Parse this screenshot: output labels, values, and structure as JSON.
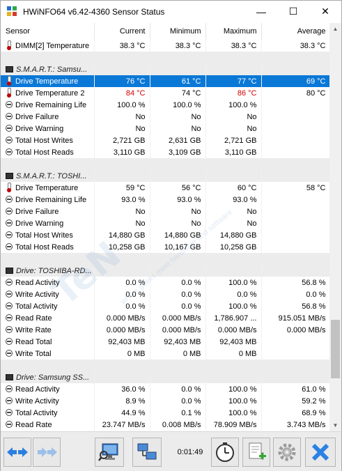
{
  "window": {
    "title": "HWiNFO64 v6.42-4360 Sensor Status",
    "minimize_glyph": "—",
    "maximize_glyph": "☐",
    "close_glyph": "✕"
  },
  "columns": [
    "Sensor",
    "Current",
    "Minimum",
    "Maximum",
    "Average"
  ],
  "rows": [
    {
      "type": "sensor",
      "icon": "thermometer-icon",
      "name": "DIMM[2] Temperature",
      "current": "38.3 °C",
      "min": "38.3 °C",
      "max": "38.3 °C",
      "avg": "38.3 °C"
    },
    {
      "type": "spacer"
    },
    {
      "type": "group",
      "name": "S.M.A.R.T.: Samsu..."
    },
    {
      "type": "sensor",
      "icon": "thermometer-icon",
      "name": "Drive Temperature",
      "current": "76 °C",
      "min": "61 °C",
      "max": "77 °C",
      "avg": "69 °C",
      "selected": true
    },
    {
      "type": "sensor",
      "icon": "thermometer-icon",
      "name": "Drive Temperature 2",
      "current": "84 °C",
      "min": "74 °C",
      "max": "86 °C",
      "avg": "80 °C",
      "red_current": true,
      "red_max": true
    },
    {
      "type": "sensor",
      "icon": "circle-minus-icon",
      "name": "Drive Remaining Life",
      "current": "100.0 %",
      "min": "100.0 %",
      "max": "100.0 %",
      "avg": ""
    },
    {
      "type": "sensor",
      "icon": "circle-minus-icon",
      "name": "Drive Failure",
      "current": "No",
      "min": "No",
      "max": "No",
      "avg": ""
    },
    {
      "type": "sensor",
      "icon": "circle-minus-icon",
      "name": "Drive Warning",
      "current": "No",
      "min": "No",
      "max": "No",
      "avg": ""
    },
    {
      "type": "sensor",
      "icon": "circle-minus-icon",
      "name": "Total Host Writes",
      "current": "2,721 GB",
      "min": "2,631 GB",
      "max": "2,721 GB",
      "avg": ""
    },
    {
      "type": "sensor",
      "icon": "circle-minus-icon",
      "name": "Total Host Reads",
      "current": "3,110 GB",
      "min": "3,109 GB",
      "max": "3,110 GB",
      "avg": ""
    },
    {
      "type": "spacer"
    },
    {
      "type": "group",
      "name": "S.M.A.R.T.: TOSHI..."
    },
    {
      "type": "sensor",
      "icon": "thermometer-icon",
      "name": "Drive Temperature",
      "current": "59 °C",
      "min": "56 °C",
      "max": "60 °C",
      "avg": "58 °C"
    },
    {
      "type": "sensor",
      "icon": "circle-minus-icon",
      "name": "Drive Remaining Life",
      "current": "93.0 %",
      "min": "93.0 %",
      "max": "93.0 %",
      "avg": ""
    },
    {
      "type": "sensor",
      "icon": "circle-minus-icon",
      "name": "Drive Failure",
      "current": "No",
      "min": "No",
      "max": "No",
      "avg": ""
    },
    {
      "type": "sensor",
      "icon": "circle-minus-icon",
      "name": "Drive Warning",
      "current": "No",
      "min": "No",
      "max": "No",
      "avg": ""
    },
    {
      "type": "sensor",
      "icon": "circle-minus-icon",
      "name": "Total Host Writes",
      "current": "14,880 GB",
      "min": "14,880 GB",
      "max": "14,880 GB",
      "avg": ""
    },
    {
      "type": "sensor",
      "icon": "circle-minus-icon",
      "name": "Total Host Reads",
      "current": "10,258 GB",
      "min": "10,167 GB",
      "max": "10,258 GB",
      "avg": ""
    },
    {
      "type": "spacer"
    },
    {
      "type": "group",
      "name": "Drive: TOSHIBA-RD..."
    },
    {
      "type": "sensor",
      "icon": "circle-minus-icon",
      "name": "Read Activity",
      "current": "0.0 %",
      "min": "0.0 %",
      "max": "100.0 %",
      "avg": "56.8 %"
    },
    {
      "type": "sensor",
      "icon": "circle-minus-icon",
      "name": "Write Activity",
      "current": "0.0 %",
      "min": "0.0 %",
      "max": "0.0 %",
      "avg": "0.0 %"
    },
    {
      "type": "sensor",
      "icon": "circle-minus-icon",
      "name": "Total Activity",
      "current": "0.0 %",
      "min": "0.0 %",
      "max": "100.0 %",
      "avg": "56.8 %"
    },
    {
      "type": "sensor",
      "icon": "circle-minus-icon",
      "name": "Read Rate",
      "current": "0.000 MB/s",
      "min": "0.000 MB/s",
      "max": "1,786.907 ...",
      "avg": "915.051 MB/s"
    },
    {
      "type": "sensor",
      "icon": "circle-minus-icon",
      "name": "Write Rate",
      "current": "0.000 MB/s",
      "min": "0.000 MB/s",
      "max": "0.000 MB/s",
      "avg": "0.000 MB/s"
    },
    {
      "type": "sensor",
      "icon": "circle-minus-icon",
      "name": "Read Total",
      "current": "92,403 MB",
      "min": "92,403 MB",
      "max": "92,403 MB",
      "avg": ""
    },
    {
      "type": "sensor",
      "icon": "circle-minus-icon",
      "name": "Write Total",
      "current": "0 MB",
      "min": "0 MB",
      "max": "0 MB",
      "avg": ""
    },
    {
      "type": "spacer"
    },
    {
      "type": "group",
      "name": "Drive: Samsung SS..."
    },
    {
      "type": "sensor",
      "icon": "circle-minus-icon",
      "name": "Read Activity",
      "current": "36.0 %",
      "min": "0.0 %",
      "max": "100.0 %",
      "avg": "61.0 %"
    },
    {
      "type": "sensor",
      "icon": "circle-minus-icon",
      "name": "Write Activity",
      "current": "8.9 %",
      "min": "0.0 %",
      "max": "100.0 %",
      "avg": "59.2 %"
    },
    {
      "type": "sensor",
      "icon": "circle-minus-icon",
      "name": "Total Activity",
      "current": "44.9 %",
      "min": "0.1 %",
      "max": "100.0 %",
      "avg": "68.9 %"
    },
    {
      "type": "sensor",
      "icon": "circle-minus-icon",
      "name": "Read Rate",
      "current": "23.747 MB/s",
      "min": "0.008 MB/s",
      "max": "78.909 MB/s",
      "avg": "3.743 MB/s"
    }
  ],
  "toolbar": {
    "elapsed_time": "0:01:49",
    "buttons": [
      {
        "name": "navigate-left-right-button",
        "icon": "double-arrow-icon"
      },
      {
        "name": "navigate-group-button",
        "icon": "double-arrow-dim-icon"
      },
      {
        "name": "monitor-button",
        "icon": "monitor-icon"
      },
      {
        "name": "network-button",
        "icon": "network-icon"
      },
      {
        "name": "reset-clock-button",
        "icon": "clock-icon"
      },
      {
        "name": "logging-button",
        "icon": "add-log-icon"
      },
      {
        "name": "settings-button",
        "icon": "gear-icon"
      },
      {
        "name": "close-sensors-button",
        "icon": "close-x-icon"
      }
    ]
  },
  "watermark": "TeN",
  "watermark_sub": "where geeks meet hardware and software",
  "colors": {
    "selection": "#0a78d7",
    "alarm": "#d00000",
    "group_bg": "#ececec"
  }
}
